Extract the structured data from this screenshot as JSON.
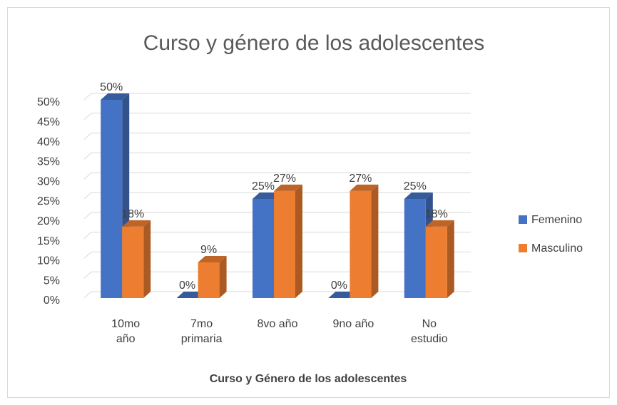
{
  "chart_data": {
    "type": "bar3d",
    "title": "Curso y género de los adolescentes",
    "x_label": "Curso y Género de los adolescentes",
    "categories": [
      "10mo año",
      "7mo primaria",
      "8vo año",
      "9no año",
      "No estudio"
    ],
    "series": [
      {
        "name": "Femenino",
        "color": "#4472c4",
        "values": [
          50,
          0,
          25,
          0,
          25
        ],
        "value_labels": [
          "50%",
          "0%",
          "25%",
          "0%",
          "25%"
        ]
      },
      {
        "name": "Masculino",
        "color": "#ed7d31",
        "values": [
          18,
          9,
          27,
          27,
          18
        ],
        "value_labels": [
          "18%",
          "9%",
          "27%",
          "27%",
          "18%"
        ]
      }
    ],
    "ylim": [
      0,
      50
    ],
    "yticks": [
      {
        "value": 0,
        "label": "0%"
      },
      {
        "value": 5,
        "label": "5%"
      },
      {
        "value": 10,
        "label": "10%"
      },
      {
        "value": 15,
        "label": "15%"
      },
      {
        "value": 20,
        "label": "20%"
      },
      {
        "value": 25,
        "label": "25%"
      },
      {
        "value": 30,
        "label": "30%"
      },
      {
        "value": 35,
        "label": "35%"
      },
      {
        "value": 40,
        "label": "40%"
      },
      {
        "value": 45,
        "label": "45%"
      },
      {
        "value": 50,
        "label": "50%"
      }
    ],
    "grid": true,
    "legend": "right"
  }
}
